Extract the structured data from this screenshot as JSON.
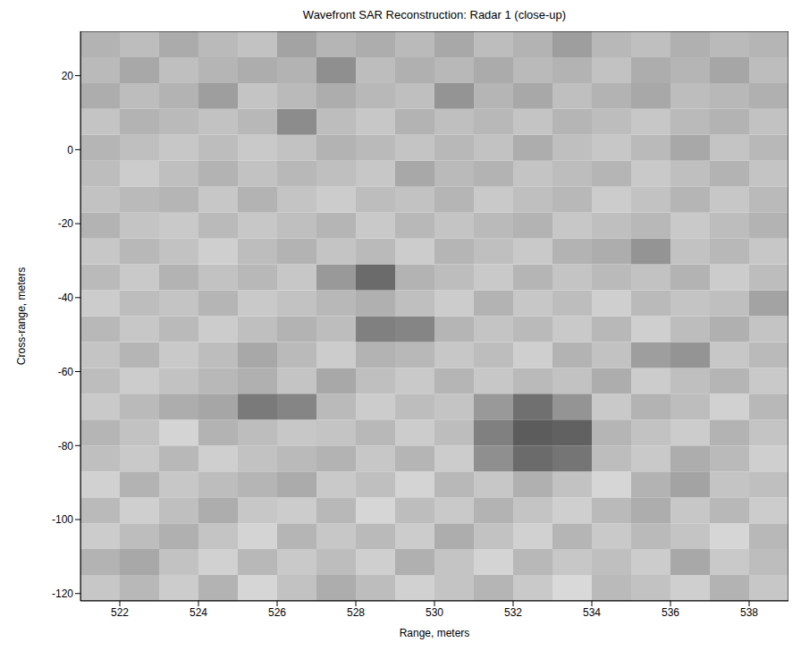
{
  "chart_data": {
    "type": "heatmap",
    "title": "Wavefront SAR Reconstruction: Radar 1 (close-up)",
    "x_label": "Range, meters",
    "y_label": "Cross-range, meters",
    "xlim": [
      521,
      539
    ],
    "xticks": [
      522,
      524,
      526,
      528,
      530,
      532,
      534,
      536,
      538
    ],
    "ylim": [
      -122,
      32
    ],
    "yticks": [
      -120,
      -100,
      -80,
      -60,
      -40,
      -20,
      0,
      20
    ],
    "grid": false,
    "color_range": [
      0,
      100
    ],
    "x": [
      521.5,
      522.5,
      523.5,
      524.5,
      525.5,
      526.5,
      527.5,
      528.5,
      529.5,
      530.5,
      531.5,
      532.5,
      533.5,
      534.5,
      535.5,
      536.5,
      537.5,
      538.5
    ],
    "y": [
      -118.5,
      -111.5,
      -104.5,
      -97.5,
      -90.5,
      -83.5,
      -76.5,
      -69.5,
      -62.5,
      -55.5,
      -48.5,
      -41.5,
      -34.5,
      -27.5,
      -20.5,
      -13.5,
      -6.5,
      0.5,
      7.5,
      14.5,
      21.5,
      28.5
    ],
    "cells": [
      [
        78,
        72,
        80,
        70,
        84,
        76,
        68,
        74,
        82,
        77,
        71,
        79,
        85,
        73,
        76,
        81,
        70,
        78
      ],
      [
        70,
        66,
        76,
        82,
        72,
        79,
        74,
        81,
        69,
        77,
        83,
        72,
        78,
        75,
        80,
        66,
        79,
        74
      ],
      [
        80,
        74,
        69,
        77,
        83,
        71,
        78,
        73,
        80,
        68,
        76,
        82,
        71,
        79,
        73,
        77,
        84,
        72
      ],
      [
        73,
        81,
        75,
        68,
        78,
        80,
        72,
        84,
        74,
        79,
        70,
        77,
        81,
        73,
        68,
        78,
        72,
        80
      ],
      [
        82,
        70,
        78,
        74,
        71,
        67,
        79,
        75,
        83,
        72,
        78,
        69,
        76,
        84,
        70,
        64,
        77,
        75
      ],
      [
        75,
        79,
        72,
        81,
        76,
        73,
        70,
        78,
        71,
        80,
        56,
        42,
        46,
        74,
        79,
        68,
        73,
        81
      ],
      [
        71,
        76,
        83,
        70,
        74,
        78,
        77,
        72,
        80,
        74,
        50,
        36,
        38,
        71,
        76,
        80,
        70,
        77
      ],
      [
        79,
        73,
        68,
        65,
        48,
        52,
        73,
        80,
        74,
        77,
        60,
        44,
        58,
        79,
        70,
        74,
        82,
        72
      ],
      [
        74,
        80,
        76,
        72,
        69,
        77,
        66,
        75,
        79,
        71,
        78,
        73,
        76,
        68,
        80,
        75,
        71,
        79
      ],
      [
        77,
        71,
        79,
        74,
        66,
        73,
        80,
        70,
        72,
        78,
        74,
        81,
        70,
        76,
        62,
        58,
        78,
        73
      ],
      [
        72,
        78,
        73,
        80,
        75,
        70,
        74,
        50,
        52,
        71,
        77,
        73,
        79,
        72,
        81,
        74,
        69,
        77
      ],
      [
        80,
        74,
        77,
        71,
        79,
        76,
        72,
        69,
        75,
        80,
        70,
        78,
        74,
        81,
        73,
        77,
        75,
        64
      ],
      [
        73,
        79,
        70,
        76,
        72,
        78,
        60,
        42,
        70,
        74,
        79,
        71,
        77,
        73,
        76,
        70,
        80,
        74
      ],
      [
        78,
        72,
        76,
        81,
        74,
        70,
        77,
        73,
        80,
        71,
        75,
        79,
        70,
        68,
        58,
        76,
        72,
        78
      ],
      [
        70,
        77,
        79,
        73,
        78,
        75,
        71,
        79,
        72,
        77,
        73,
        70,
        78,
        75,
        72,
        79,
        74,
        70
      ],
      [
        76,
        73,
        71,
        78,
        70,
        77,
        80,
        74,
        76,
        71,
        79,
        75,
        72,
        80,
        76,
        71,
        78,
        73
      ],
      [
        74,
        80,
        75,
        70,
        76,
        72,
        75,
        78,
        66,
        73,
        70,
        77,
        74,
        71,
        79,
        75,
        70,
        77
      ],
      [
        71,
        75,
        78,
        74,
        79,
        76,
        70,
        73,
        77,
        72,
        76,
        68,
        75,
        78,
        73,
        66,
        77,
        72
      ],
      [
        77,
        70,
        73,
        76,
        72,
        55,
        74,
        78,
        70,
        75,
        72,
        77,
        71,
        74,
        78,
        73,
        70,
        76
      ],
      [
        68,
        74,
        70,
        62,
        77,
        73,
        68,
        72,
        75,
        58,
        71,
        66,
        75,
        70,
        66,
        74,
        72,
        69
      ],
      [
        73,
        66,
        75,
        71,
        68,
        70,
        56,
        74,
        69,
        72,
        67,
        73,
        70,
        76,
        68,
        71,
        65,
        74
      ],
      [
        70,
        74,
        67,
        73,
        76,
        64,
        71,
        68,
        73,
        66,
        74,
        70,
        62,
        72,
        75,
        69,
        73,
        71
      ]
    ]
  }
}
